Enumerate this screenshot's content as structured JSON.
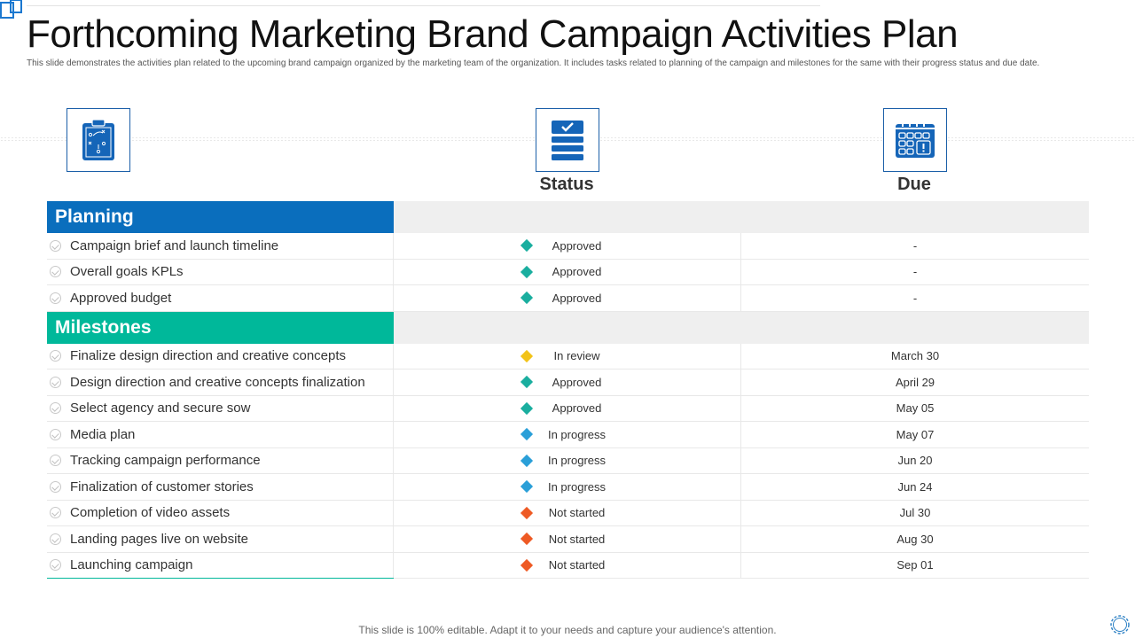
{
  "title": "Forthcoming Marketing Brand Campaign Activities Plan",
  "subtitle": "This slide demonstrates the activities plan related to the upcoming brand campaign organized by the marketing team of the organization. It includes tasks related to planning of the campaign and milestones for the same with their progress status and due date.",
  "columns": {
    "status": "Status",
    "due": "Due"
  },
  "icons": {
    "strategy": "clipboard-strategy-icon",
    "status": "checklist-icon",
    "due": "calendar-icon"
  },
  "status_colors": {
    "Approved": "#1aae9f",
    "In review": "#f2c318",
    "In progress": "#2a9fd8",
    "Not started": "#ee5a24"
  },
  "sections": [
    {
      "label": "Planning",
      "color": "#0a6ebd",
      "rows": [
        {
          "task": "Campaign brief and launch timeline",
          "status": "Approved",
          "due": "-"
        },
        {
          "task": "Overall goals KPLs",
          "status": "Approved",
          "due": "-"
        },
        {
          "task": "Approved budget",
          "status": "Approved",
          "due": "-"
        }
      ]
    },
    {
      "label": "Milestones",
      "color": "#00b89a",
      "rows": [
        {
          "task": "Finalize design direction and creative concepts",
          "status": "In review",
          "due": "March 30"
        },
        {
          "task": "Design direction and creative concepts finalization",
          "status": "Approved",
          "due": "April 29"
        },
        {
          "task": "Select agency and secure sow",
          "status": "Approved",
          "due": "May 05"
        },
        {
          "task": "Media plan",
          "status": "In progress",
          "due": "May 07"
        },
        {
          "task": "Tracking campaign performance",
          "status": "In progress",
          "due": "Jun 20"
        },
        {
          "task": "Finalization of customer stories",
          "status": "In progress",
          "due": "Jun 24"
        },
        {
          "task": "Completion of video assets",
          "status": "Not started",
          "due": "Jul 30"
        },
        {
          "task": "Landing pages live on website",
          "status": "Not started",
          "due": "Aug 30"
        },
        {
          "task": "Launching campaign",
          "status": "Not started",
          "due": "Sep 01"
        }
      ]
    }
  ],
  "footer": "This slide is 100% editable. Adapt it to your needs and capture your audience's attention."
}
